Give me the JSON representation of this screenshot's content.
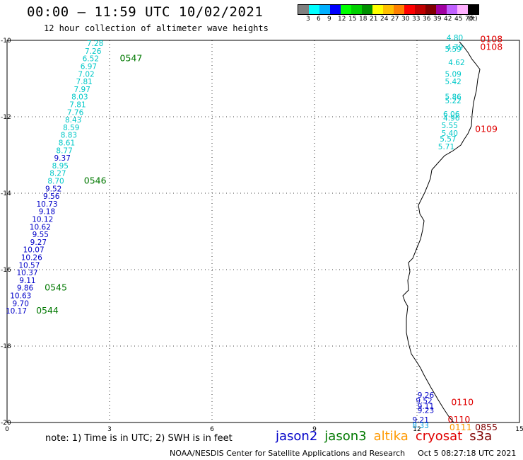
{
  "title": "00:00 – 11:59 UTC 10/02/2021",
  "subtitle": "12 hour collection of altimeter wave heights",
  "legend": {
    "colors": [
      "#808080",
      "#00ffff",
      "#00b0ff",
      "#0000ff",
      "#00ff00",
      "#00d000",
      "#009000",
      "#ffff00",
      "#ffc000",
      "#ff8000",
      "#ff0000",
      "#c00000",
      "#800000",
      "#a000a0",
      "#c060ff",
      "#ffb0ff",
      "#000000"
    ],
    "labels": [
      "3",
      "6",
      "9",
      "12",
      "15",
      "18",
      "21",
      "24",
      "27",
      "30",
      "33",
      "36",
      "39",
      "42",
      "45",
      "70",
      "(ft)"
    ]
  },
  "map_axes": {
    "lon_min": 0,
    "lon_max": 15,
    "lat_top": -10,
    "lat_bottom": -20,
    "lon_ticks": [
      "0",
      "3",
      "6",
      "9",
      "12",
      "15"
    ],
    "lat_ticks": [
      "-10",
      "-12",
      "-14",
      "-16",
      "-18",
      "-20"
    ]
  },
  "colors": {
    "jason2": "#0000c8",
    "jason3": "#007800",
    "altika": "#ff9900",
    "cryosat": "#e00000",
    "s3a": "#800000",
    "cyan": "#00c8c8",
    "lightblue": "#00a0e0"
  },
  "track_jason3": [
    {
      "lon": 2.82,
      "lat": -10.15,
      "v": "7.28",
      "c": "cyan"
    },
    {
      "lon": 2.76,
      "lat": -10.35,
      "v": "7.26",
      "c": "cyan"
    },
    {
      "lon": 2.69,
      "lat": -10.55,
      "v": "6.52",
      "c": "cyan"
    },
    {
      "lon": 2.63,
      "lat": -10.75,
      "v": "6.97",
      "c": "cyan"
    },
    {
      "lon": 2.56,
      "lat": -10.95,
      "v": "7.02",
      "c": "cyan"
    },
    {
      "lon": 2.5,
      "lat": -11.15,
      "v": "7.81",
      "c": "cyan"
    },
    {
      "lon": 2.44,
      "lat": -11.35,
      "v": "7.97",
      "c": "cyan"
    },
    {
      "lon": 2.37,
      "lat": -11.55,
      "v": "8.03",
      "c": "cyan"
    },
    {
      "lon": 2.31,
      "lat": -11.75,
      "v": "7.81",
      "c": "cyan"
    },
    {
      "lon": 2.24,
      "lat": -11.95,
      "v": "7.76",
      "c": "cyan"
    },
    {
      "lon": 2.18,
      "lat": -12.15,
      "v": "8.43",
      "c": "cyan"
    },
    {
      "lon": 2.12,
      "lat": -12.35,
      "v": "8.59",
      "c": "cyan"
    },
    {
      "lon": 2.05,
      "lat": -12.55,
      "v": "8.83",
      "c": "cyan"
    },
    {
      "lon": 1.99,
      "lat": -12.75,
      "v": "8.61",
      "c": "cyan"
    },
    {
      "lon": 1.92,
      "lat": -12.95,
      "v": "8.77",
      "c": "cyan"
    },
    {
      "lon": 1.86,
      "lat": -13.15,
      "v": "9.37",
      "c": "jason2"
    },
    {
      "lon": 1.8,
      "lat": -13.35,
      "v": "8.95",
      "c": "cyan"
    },
    {
      "lon": 1.73,
      "lat": -13.55,
      "v": "8.27",
      "c": "cyan"
    },
    {
      "lon": 1.67,
      "lat": -13.75,
      "v": "8.70",
      "c": "cyan"
    },
    {
      "lon": 1.6,
      "lat": -13.95,
      "v": "9.52",
      "c": "jason2"
    },
    {
      "lon": 1.54,
      "lat": -14.15,
      "v": "9.56",
      "c": "jason2"
    },
    {
      "lon": 1.48,
      "lat": -14.35,
      "v": "10.73",
      "c": "jason2"
    },
    {
      "lon": 1.41,
      "lat": -14.55,
      "v": "9.18",
      "c": "jason2"
    },
    {
      "lon": 1.35,
      "lat": -14.75,
      "v": "10.12",
      "c": "jason2"
    },
    {
      "lon": 1.28,
      "lat": -14.95,
      "v": "10.62",
      "c": "jason2"
    },
    {
      "lon": 1.22,
      "lat": -15.15,
      "v": "9.55",
      "c": "jason2"
    },
    {
      "lon": 1.16,
      "lat": -15.35,
      "v": "9.27",
      "c": "jason2"
    },
    {
      "lon": 1.09,
      "lat": -15.55,
      "v": "10.07",
      "c": "jason2"
    },
    {
      "lon": 1.03,
      "lat": -15.75,
      "v": "10.26",
      "c": "jason2"
    },
    {
      "lon": 0.96,
      "lat": -15.95,
      "v": "10.57",
      "c": "jason2"
    },
    {
      "lon": 0.9,
      "lat": -16.15,
      "v": "10.37",
      "c": "jason2"
    },
    {
      "lon": 0.84,
      "lat": -16.35,
      "v": "9.11",
      "c": "jason2"
    },
    {
      "lon": 0.77,
      "lat": -16.55,
      "v": "9.86",
      "c": "jason2"
    },
    {
      "lon": 0.71,
      "lat": -16.75,
      "v": "10.63",
      "c": "jason2"
    },
    {
      "lon": 0.64,
      "lat": -16.95,
      "v": "9.70",
      "c": "jason2"
    },
    {
      "lon": 0.58,
      "lat": -17.15,
      "v": "10.17",
      "c": "jason2"
    }
  ],
  "track_coast": [
    {
      "lon": 13.35,
      "lat": -10.0,
      "v": "4.80",
      "c": "cyan"
    },
    {
      "lon": 13.35,
      "lat": -10.25,
      "v": "4.79",
      "c": "cyan"
    },
    {
      "lon": 13.3,
      "lat": -10.3,
      "v": "5.59",
      "c": "cyan"
    },
    {
      "lon": 13.4,
      "lat": -10.65,
      "v": "4.62",
      "c": "cyan"
    },
    {
      "lon": 13.3,
      "lat": -10.95,
      "v": "5.09",
      "c": "cyan"
    },
    {
      "lon": 13.3,
      "lat": -11.15,
      "v": "5.42",
      "c": "cyan"
    },
    {
      "lon": 13.3,
      "lat": -11.55,
      "v": "5.86",
      "c": "cyan"
    },
    {
      "lon": 13.3,
      "lat": -11.65,
      "v": "5.22",
      "c": "cyan"
    },
    {
      "lon": 13.25,
      "lat": -12.0,
      "v": "6.06",
      "c": "cyan"
    },
    {
      "lon": 13.25,
      "lat": -12.1,
      "v": "4.96",
      "c": "cyan"
    },
    {
      "lon": 13.2,
      "lat": -12.3,
      "v": "5.55",
      "c": "cyan"
    },
    {
      "lon": 13.2,
      "lat": -12.5,
      "v": "5.40",
      "c": "cyan"
    },
    {
      "lon": 13.15,
      "lat": -12.65,
      "v": "5.57",
      "c": "cyan"
    },
    {
      "lon": 13.1,
      "lat": -12.85,
      "v": "5.71",
      "c": "cyan"
    },
    {
      "lon": 12.5,
      "lat": -19.35,
      "v": "9.26",
      "c": "jason2"
    },
    {
      "lon": 12.45,
      "lat": -19.5,
      "v": "9.52",
      "c": "jason2"
    },
    {
      "lon": 12.5,
      "lat": -19.65,
      "v": "9.11",
      "c": "jason2"
    },
    {
      "lon": 12.5,
      "lat": -19.75,
      "v": "9.23",
      "c": "jason2"
    },
    {
      "lon": 12.35,
      "lat": -20.0,
      "v": "9.21",
      "c": "jason2"
    },
    {
      "lon": 12.35,
      "lat": -20.15,
      "v": "8.33",
      "c": "lightblue"
    }
  ],
  "pass_times": [
    {
      "lon": 3.3,
      "lat": -10.55,
      "t": "0547",
      "c": "jason3"
    },
    {
      "lon": 2.25,
      "lat": -13.75,
      "t": "0546",
      "c": "jason3"
    },
    {
      "lon": 1.1,
      "lat": -16.55,
      "t": "0545",
      "c": "jason3"
    },
    {
      "lon": 0.85,
      "lat": -17.15,
      "t": "0544",
      "c": "jason3"
    },
    {
      "lon": 13.85,
      "lat": -10.05,
      "t": "0108",
      "c": "cryosat"
    },
    {
      "lon": 13.85,
      "lat": -10.25,
      "t": "0108",
      "c": "cryosat"
    },
    {
      "lon": 13.7,
      "lat": -12.4,
      "t": "0109",
      "c": "cryosat"
    },
    {
      "lon": 13.0,
      "lat": -19.55,
      "t": "0110",
      "c": "cryosat"
    },
    {
      "lon": 12.9,
      "lat": -20.0,
      "t": "0110",
      "c": "cryosat"
    },
    {
      "lon": 12.95,
      "lat": -20.2,
      "t": "0111",
      "c": "altika"
    },
    {
      "lon": 13.7,
      "lat": -20.2,
      "t": "0855",
      "c": "s3a"
    }
  ],
  "note": "note:  1) Time is in UTC;  2) SWH is in feet",
  "satellites": [
    {
      "name": "jason2",
      "c": "jason2"
    },
    {
      "name": "jason3",
      "c": "jason3"
    },
    {
      "name": "altika",
      "c": "altika"
    },
    {
      "name": "cryosat",
      "c": "cryosat"
    },
    {
      "name": "s3a",
      "c": "s3a"
    }
  ],
  "credit": "NOAA/NESDIS Center for Satellite Applications and Research",
  "timestamp": "Oct  5 08:27:18 UTC 2021"
}
